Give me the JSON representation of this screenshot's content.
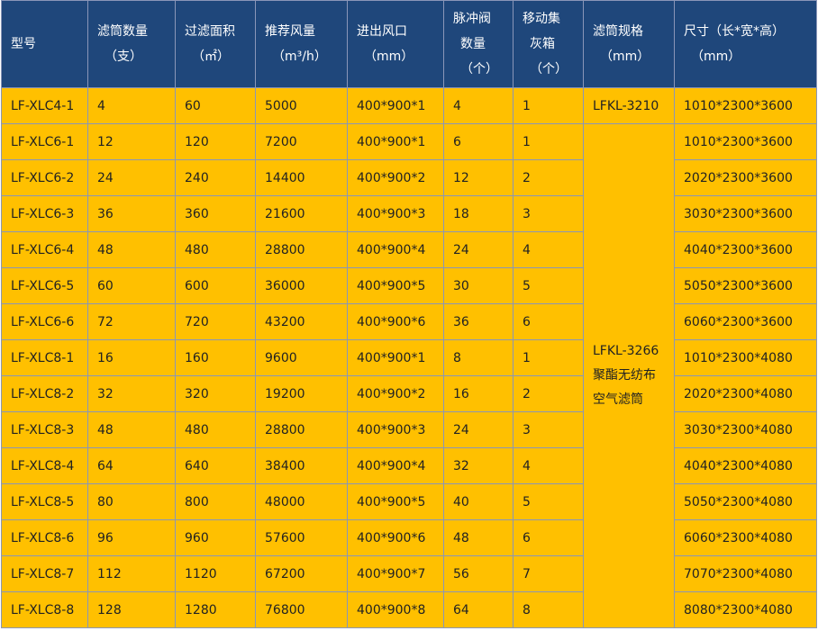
{
  "colors": {
    "header_bg": "#1f477b",
    "row_bg": "#ffc000",
    "border": "#8a96b8"
  },
  "headers": [
    {
      "lines": [
        "型号"
      ]
    },
    {
      "lines": [
        "滤筒数量",
        "（支）"
      ]
    },
    {
      "lines": [
        "过滤面积",
        "（㎡）"
      ]
    },
    {
      "lines": [
        "推荐风量",
        "（m³/h）"
      ]
    },
    {
      "lines": [
        "进出风口",
        "（mm）"
      ]
    },
    {
      "lines": [
        "脉冲阀",
        "数量",
        "（个）"
      ]
    },
    {
      "lines": [
        "移动集",
        "灰箱",
        "（个）"
      ]
    },
    {
      "lines": [
        "滤筒规格",
        "（mm）"
      ]
    },
    {
      "lines": [
        "尺寸（长*宽*高）",
        "（mm）"
      ]
    }
  ],
  "spec_first": "LFKL-3210",
  "spec_merged": [
    "LFKL-3266",
    "聚酯无纺布",
    "空气滤筒"
  ],
  "rows": [
    [
      "LF-XLC4-1",
      "4",
      "60",
      "5000",
      "400*900*1",
      "4",
      "1",
      "1010*2300*3600"
    ],
    [
      "LF-XLC6-1",
      "12",
      "120",
      "7200",
      "400*900*1",
      "6",
      "1",
      "1010*2300*3600"
    ],
    [
      "LF-XLC6-2",
      "24",
      "240",
      "14400",
      "400*900*2",
      "12",
      "2",
      "2020*2300*3600"
    ],
    [
      "LF-XLC6-3",
      "36",
      "360",
      "21600",
      "400*900*3",
      "18",
      "3",
      "3030*2300*3600"
    ],
    [
      "LF-XLC6-4",
      "48",
      "480",
      "28800",
      "400*900*4",
      "24",
      "4",
      "4040*2300*3600"
    ],
    [
      "LF-XLC6-5",
      "60",
      "600",
      "36000",
      "400*900*5",
      "30",
      "5",
      "5050*2300*3600"
    ],
    [
      "LF-XLC6-6",
      "72",
      "720",
      "43200",
      "400*900*6",
      "36",
      "6",
      "6060*2300*3600"
    ],
    [
      "LF-XLC8-1",
      "16",
      "160",
      "9600",
      "400*900*1",
      "8",
      "1",
      "1010*2300*4080"
    ],
    [
      "LF-XLC8-2",
      "32",
      "320",
      "19200",
      "400*900*2",
      "16",
      "2",
      "2020*2300*4080"
    ],
    [
      "LF-XLC8-3",
      "48",
      "480",
      "28800",
      "400*900*3",
      "24",
      "3",
      "3030*2300*4080"
    ],
    [
      "LF-XLC8-4",
      "64",
      "640",
      "38400",
      "400*900*4",
      "32",
      "4",
      "4040*2300*4080"
    ],
    [
      "LF-XLC8-5",
      "80",
      "800",
      "48000",
      "400*900*5",
      "40",
      "5",
      "5050*2300*4080"
    ],
    [
      "LF-XLC8-6",
      "96",
      "960",
      "57600",
      "400*900*6",
      "48",
      "6",
      "6060*2300*4080"
    ],
    [
      "LF-XLC8-7",
      "112",
      "1120",
      "67200",
      "400*900*7",
      "56",
      "7",
      "7070*2300*4080"
    ],
    [
      "LF-XLC8-8",
      "128",
      "1280",
      "76800",
      "400*900*8",
      "64",
      "8",
      "8080*2300*4080"
    ]
  ]
}
